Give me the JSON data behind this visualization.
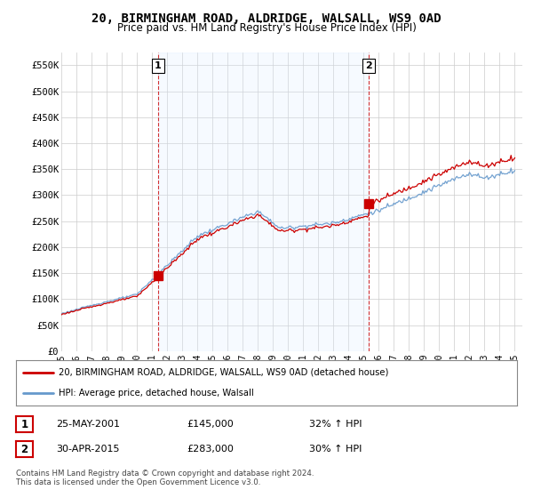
{
  "title": "20, BIRMINGHAM ROAD, ALDRIDGE, WALSALL, WS9 0AD",
  "subtitle": "Price paid vs. HM Land Registry's House Price Index (HPI)",
  "title_fontsize": 10,
  "subtitle_fontsize": 8.5,
  "ylim": [
    0,
    575000
  ],
  "yticks": [
    0,
    50000,
    100000,
    150000,
    200000,
    250000,
    300000,
    350000,
    400000,
    450000,
    500000,
    550000
  ],
  "ytick_labels": [
    "£0",
    "£50K",
    "£100K",
    "£150K",
    "£200K",
    "£250K",
    "£300K",
    "£350K",
    "£400K",
    "£450K",
    "£500K",
    "£550K"
  ],
  "x_start_year": 1995,
  "x_end_year": 2025,
  "background_color": "#ffffff",
  "plot_bg_color": "#ffffff",
  "grid_color": "#cccccc",
  "shade_color": "#ddeeff",
  "hpi_line_color": "#6699cc",
  "price_line_color": "#cc0000",
  "transaction1_year": 2001.4,
  "transaction1_price": 145000,
  "transaction2_year": 2015.33,
  "transaction2_price": 283000,
  "legend_line1": "20, BIRMINGHAM ROAD, ALDRIDGE, WALSALL, WS9 0AD (detached house)",
  "legend_line2": "HPI: Average price, detached house, Walsall",
  "footer": "Contains HM Land Registry data © Crown copyright and database right 2024.\nThis data is licensed under the Open Government Licence v3.0.",
  "table_row1": [
    "1",
    "25-MAY-2001",
    "£145,000",
    "32% ↑ HPI"
  ],
  "table_row2": [
    "2",
    "30-APR-2015",
    "£283,000",
    "30% ↑ HPI"
  ]
}
